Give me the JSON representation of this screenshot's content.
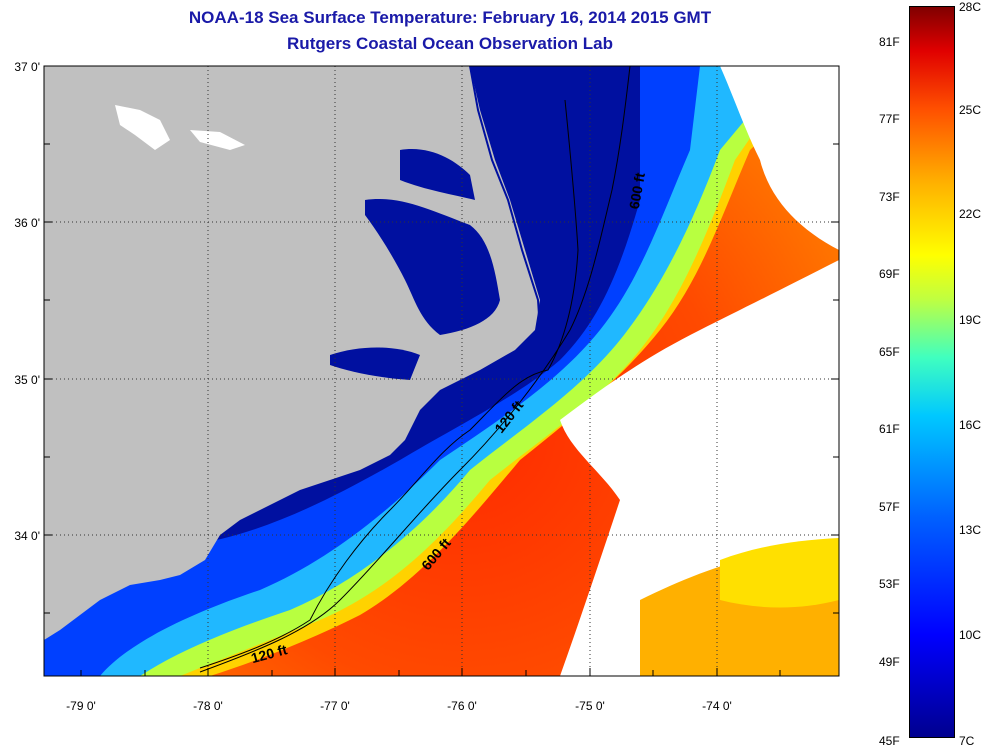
{
  "header": {
    "title": "NOAA-18 Sea Surface Temperature:  February 16, 2014 2015 GMT",
    "subtitle": "Rutgers Coastal Ocean Observation Lab"
  },
  "map": {
    "lat_labels": [
      "37 0'",
      "36 0'",
      "35 0'",
      "34 0'"
    ],
    "lon_labels": [
      "-79 0'",
      "-78 0'",
      "-77 0'",
      "-76 0'",
      "-75 0'",
      "-74 0'"
    ],
    "contour_labels": [
      "600 ft",
      "120 ft",
      "600 ft",
      "120 ft"
    ]
  },
  "colorbar": {
    "fahrenheit_labels": [
      "81F",
      "77F",
      "73F",
      "69F",
      "65F",
      "61F",
      "57F",
      "53F",
      "49F",
      "45F"
    ],
    "celsius_labels": [
      "28C",
      "25C",
      "22C",
      "19C",
      "16C",
      "13C",
      "10C",
      "7C"
    ]
  },
  "colors": {
    "land": "#c0c0c0",
    "cold": "#00008f",
    "warm": "#e02000",
    "title": "#1a1aa8"
  }
}
